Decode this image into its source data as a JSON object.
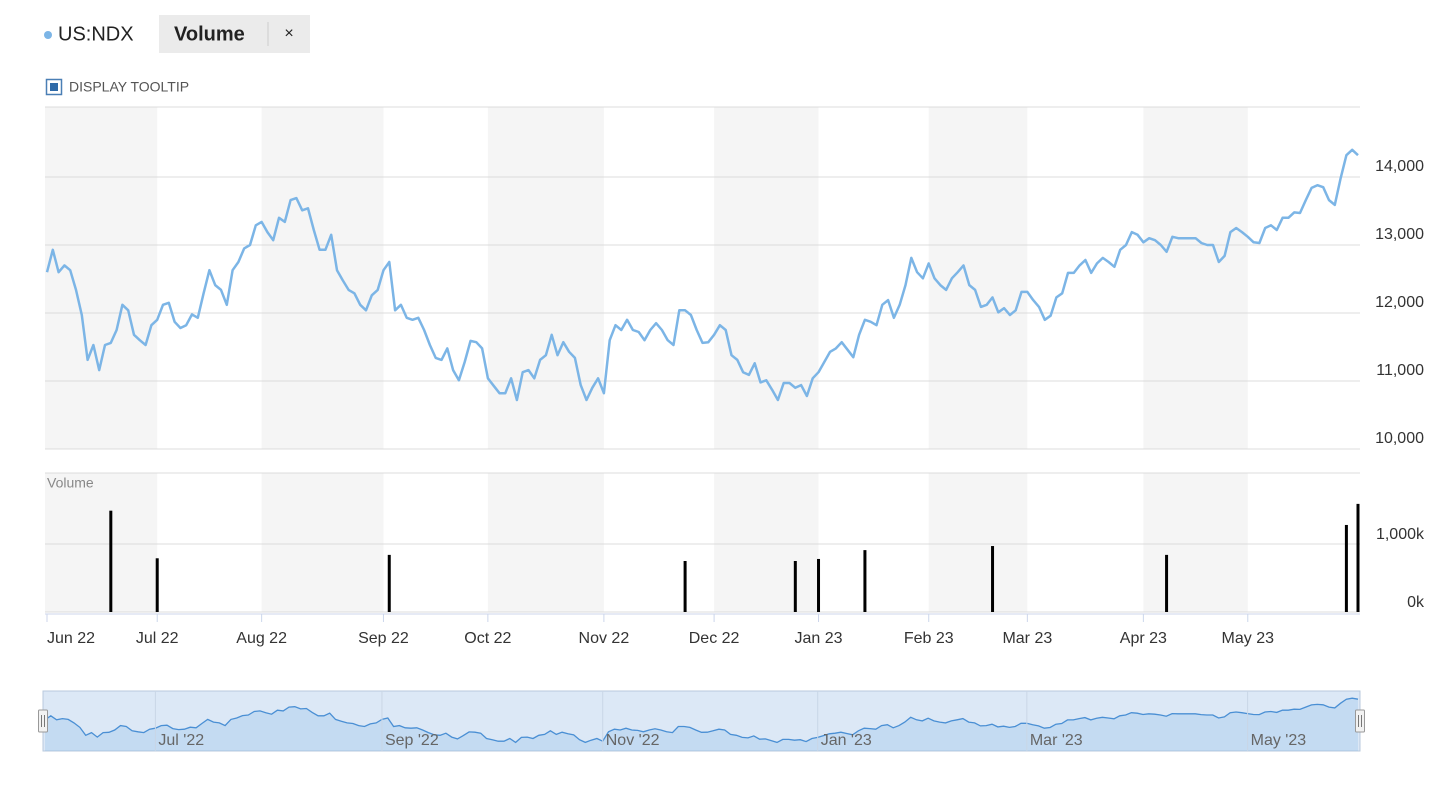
{
  "chart_data": {
    "type": "line",
    "categories": [
      "Jun 22",
      null,
      null,
      null,
      null,
      null,
      null,
      null,
      null,
      null,
      null,
      null,
      null,
      null,
      null,
      null,
      null,
      null,
      null,
      "Jul 22",
      null,
      null,
      null,
      null,
      null,
      null,
      null,
      null,
      null,
      null,
      null,
      null,
      null,
      null,
      null,
      null,
      null,
      "Aug 22",
      null,
      null,
      null,
      null,
      null,
      null,
      null,
      null,
      null,
      null,
      null,
      null,
      null,
      null,
      null,
      null,
      null,
      null,
      null,
      null,
      "Sep 22",
      null,
      null,
      null,
      null,
      null,
      null,
      null,
      null,
      null,
      null,
      null,
      null,
      null,
      null,
      null,
      null,
      null,
      "Oct 22",
      null,
      null,
      null,
      null,
      null,
      null,
      null,
      null,
      null,
      null,
      null,
      null,
      null,
      null,
      null,
      null,
      null,
      null,
      null,
      "Nov 22",
      null,
      null,
      null,
      null,
      null,
      null,
      null,
      null,
      null,
      null,
      null,
      null,
      null,
      null,
      null,
      null,
      null,
      null,
      "Dec 22",
      null,
      null,
      null,
      null,
      null,
      null,
      null,
      null,
      null,
      null,
      null,
      null,
      null,
      null,
      null,
      null,
      null,
      "Jan 23",
      null,
      null,
      null,
      null,
      null,
      null,
      null,
      null,
      null,
      null,
      null,
      null,
      null,
      null,
      null,
      null,
      null,
      null,
      "Feb 23",
      null,
      null,
      null,
      null,
      null,
      null,
      null,
      null,
      null,
      null,
      null,
      null,
      null,
      null,
      null,
      null,
      "Mar 23",
      null,
      null,
      null,
      null,
      null,
      null,
      null,
      null,
      null,
      null,
      null,
      null,
      null,
      null,
      null,
      null,
      null,
      null,
      null,
      "Apr 23",
      null,
      null,
      null,
      null,
      null,
      null,
      null,
      null,
      null,
      null,
      null,
      null,
      null,
      null,
      null,
      null,
      null,
      "May 23",
      null,
      null,
      null,
      null,
      null,
      null,
      null,
      null,
      null,
      null,
      null,
      null,
      null,
      null,
      null,
      null,
      null,
      null,
      null
    ],
    "series": [
      {
        "name": "US:NDX",
        "color": "#7cb5e6",
        "values": [
          12600,
          12930,
          12600,
          12700,
          12630,
          12340,
          11970,
          11310,
          11530,
          11160,
          11530,
          11560,
          11750,
          12120,
          12040,
          11680,
          11600,
          11530,
          11820,
          11900,
          12120,
          12150,
          11870,
          11780,
          11820,
          11980,
          11930,
          12290,
          12630,
          12410,
          12340,
          12120,
          12630,
          12750,
          12950,
          13000,
          13290,
          13340,
          13190,
          13070,
          13400,
          13340,
          13660,
          13690,
          13510,
          13540,
          13220,
          12930,
          12930,
          13150,
          12630,
          12480,
          12340,
          12290,
          12120,
          12040,
          12260,
          12340,
          12630,
          12750,
          12040,
          12120,
          11930,
          11900,
          11930,
          11750,
          11530,
          11340,
          11310,
          11480,
          11160,
          11010,
          11280,
          11590,
          11570,
          11480,
          11040,
          10930,
          10820,
          10820,
          11040,
          10720,
          11130,
          11160,
          11040,
          11310,
          11380,
          11680,
          11380,
          11570,
          11430,
          11340,
          10940,
          10720,
          10900,
          11040,
          10820,
          11600,
          11820,
          11750,
          11900,
          11750,
          11720,
          11600,
          11750,
          11850,
          11750,
          11600,
          11530,
          12040,
          12040,
          11970,
          11750,
          11560,
          11570,
          11680,
          11820,
          11750,
          11380,
          11310,
          11130,
          11090,
          11260,
          10980,
          11010,
          10870,
          10720,
          10970,
          10970,
          10900,
          10940,
          10780,
          11040,
          11130,
          11280,
          11430,
          11480,
          11570,
          11460,
          11350,
          11680,
          11900,
          11870,
          11820,
          12120,
          12190,
          11930,
          12120,
          12410,
          12810,
          12600,
          12510,
          12730,
          12510,
          12410,
          12340,
          12510,
          12600,
          12700,
          12410,
          12340,
          12090,
          12120,
          12230,
          12010,
          12070,
          11970,
          12040,
          12310,
          12310,
          12190,
          12090,
          11900,
          11960,
          12230,
          12290,
          12590,
          12590,
          12700,
          12780,
          12590,
          12730,
          12810,
          12750,
          12680,
          12930,
          13000,
          13190,
          13150,
          13040,
          13100,
          13070,
          13000,
          12900,
          13120,
          13100,
          13100,
          13100,
          13100,
          13030,
          13000,
          13000,
          12750,
          12840,
          13190,
          13250,
          13190,
          13120,
          13040,
          13030,
          13250,
          13290,
          13220,
          13400,
          13400,
          13480,
          13470,
          13660,
          13840,
          13880,
          13850,
          13660,
          13590,
          13980,
          14320,
          14400,
          14320
        ]
      },
      {
        "name": "Volume",
        "type": "bar",
        "axis": "y2",
        "color": "#000000",
        "values": [
          null,
          null,
          null,
          null,
          null,
          null,
          null,
          null,
          null,
          null,
          null,
          1490,
          null,
          null,
          null,
          null,
          null,
          null,
          null,
          790,
          null,
          null,
          null,
          null,
          null,
          null,
          null,
          null,
          null,
          null,
          null,
          null,
          null,
          null,
          null,
          null,
          null,
          null,
          null,
          null,
          null,
          null,
          null,
          null,
          null,
          null,
          null,
          null,
          null,
          null,
          null,
          null,
          null,
          null,
          null,
          null,
          null,
          null,
          null,
          840,
          null,
          null,
          null,
          null,
          null,
          null,
          null,
          null,
          null,
          null,
          null,
          null,
          null,
          null,
          null,
          null,
          null,
          null,
          null,
          null,
          null,
          null,
          null,
          null,
          null,
          null,
          null,
          null,
          null,
          null,
          null,
          null,
          null,
          null,
          null,
          null,
          null,
          null,
          null,
          null,
          null,
          null,
          null,
          null,
          null,
          null,
          null,
          null,
          null,
          null,
          750,
          null,
          null,
          null,
          null,
          null,
          null,
          null,
          null,
          null,
          null,
          null,
          null,
          null,
          null,
          null,
          null,
          null,
          null,
          750,
          null,
          null,
          null,
          780,
          null,
          null,
          null,
          null,
          null,
          null,
          null,
          910,
          null,
          null,
          null,
          null,
          null,
          null,
          null,
          null,
          null,
          null,
          null,
          null,
          null,
          null,
          null,
          null,
          null,
          null,
          null,
          null,
          null,
          970,
          null,
          null,
          null,
          null,
          null,
          null,
          null,
          null,
          null,
          null,
          null,
          null,
          null,
          null,
          null,
          null,
          null,
          null,
          null,
          null,
          null,
          null,
          null,
          null,
          null,
          null,
          null,
          null,
          null,
          840,
          null,
          null,
          null,
          null,
          null,
          null,
          null,
          null,
          null,
          null,
          null,
          null,
          null,
          null,
          null,
          null,
          null,
          null,
          null,
          null,
          null,
          null,
          null,
          null,
          null,
          null,
          null,
          null,
          null,
          null,
          1280,
          null,
          1590
        ]
      }
    ],
    "ylim": [
      10000,
      15000
    ],
    "yticks": [
      {
        "value": 10000,
        "label": "10,000"
      },
      {
        "value": 11000,
        "label": "11,000"
      },
      {
        "value": 12000,
        "label": "12,000"
      },
      {
        "value": 13000,
        "label": "13,000"
      },
      {
        "value": 14000,
        "label": "14,000"
      }
    ],
    "y2lim": [
      0,
      2000
    ],
    "y2ticks": [
      {
        "value": 0,
        "label": "0k"
      },
      {
        "value": 1000,
        "label": "1,000k"
      }
    ],
    "grid": true,
    "tooltip_toggle": "DISPLAY TOOLTIP",
    "navigator": {
      "labels": [
        "Jul '22",
        "Sep '22",
        "Nov '22",
        "Jan '23",
        "Mar '23",
        "May '23"
      ]
    }
  }
}
